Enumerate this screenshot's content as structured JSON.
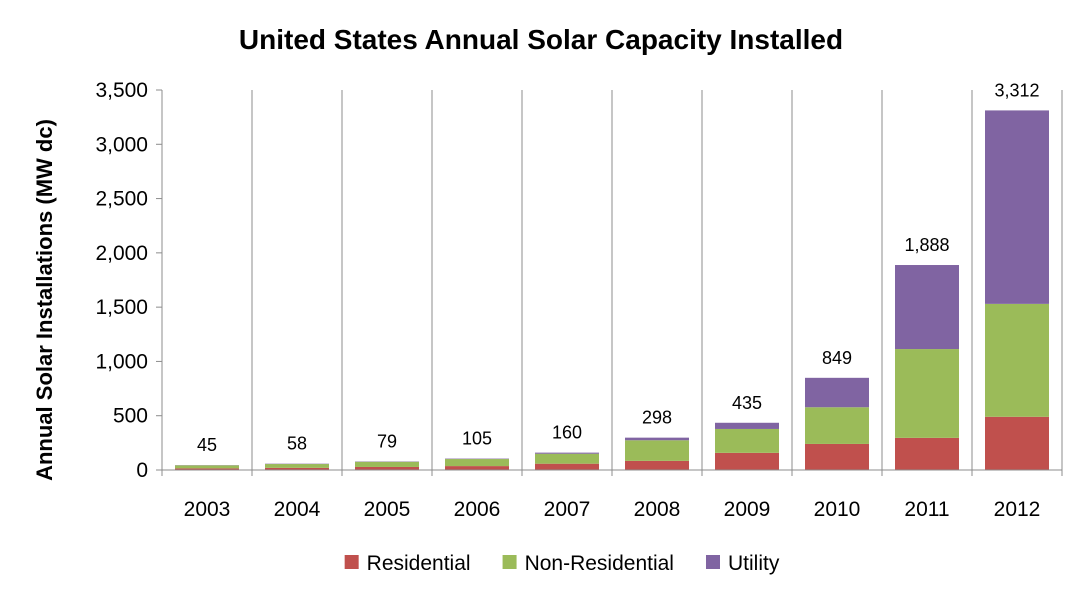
{
  "chart_data": {
    "type": "bar",
    "stacked": true,
    "title": "United States Annual Solar Capacity Installed",
    "ylabel": "Annual Solar Installations (MW dc)",
    "xlabel": "",
    "ylim": [
      0,
      3500
    ],
    "yticks": [
      0,
      500,
      1000,
      1500,
      2000,
      2500,
      3000,
      3500
    ],
    "ytick_labels": [
      "0",
      "500",
      "1,000",
      "1,500",
      "2,000",
      "2,500",
      "3,000",
      "3,500"
    ],
    "grid": "vertical-category-lines",
    "categories": [
      "2003",
      "2004",
      "2005",
      "2006",
      "2007",
      "2008",
      "2009",
      "2010",
      "2011",
      "2012"
    ],
    "series": [
      {
        "name": "Residential",
        "color": "#C0504D",
        "values": [
          15,
          20,
          28,
          36,
          58,
          84,
          158,
          240,
          296,
          490
        ]
      },
      {
        "name": "Non-Residential",
        "color": "#9BBB59",
        "values": [
          28,
          35,
          48,
          65,
          92,
          190,
          220,
          338,
          818,
          1040
        ]
      },
      {
        "name": "Utility",
        "color": "#8064A2",
        "values": [
          2,
          3,
          3,
          4,
          10,
          24,
          57,
          271,
          774,
          1782
        ]
      }
    ],
    "totals": [
      45,
      58,
      79,
      105,
      160,
      298,
      435,
      849,
      1888,
      3312
    ],
    "total_labels": [
      "45",
      "58",
      "79",
      "105",
      "160",
      "298",
      "435",
      "849",
      "1,888",
      "3,312"
    ],
    "legend": "bottom"
  }
}
